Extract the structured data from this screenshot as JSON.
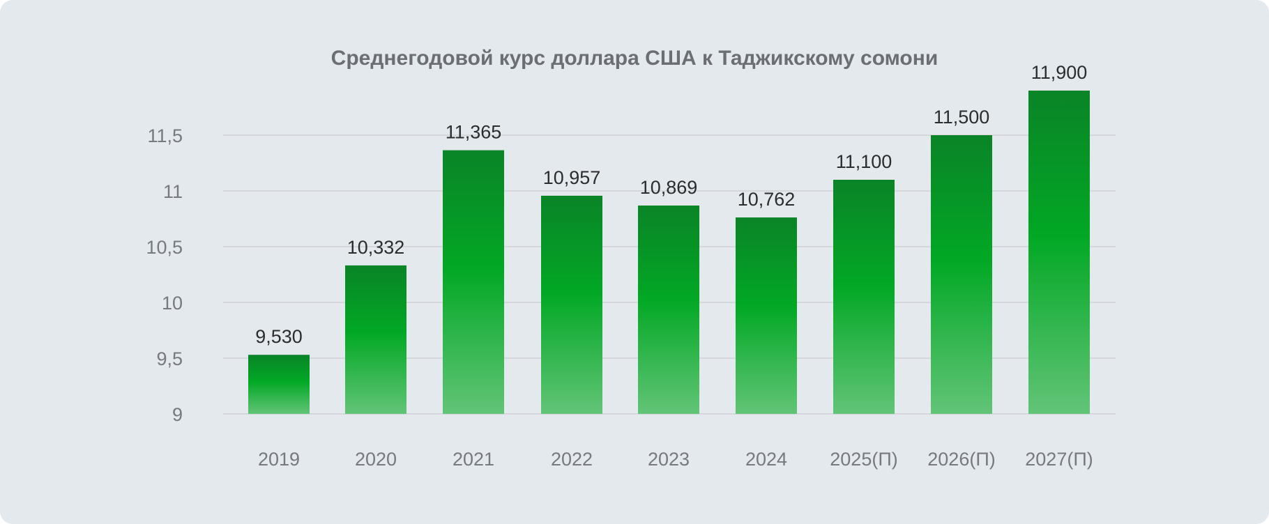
{
  "chart_data": {
    "type": "bar",
    "title": "Среднегодовой курс доллара США к Таджикскому сомони",
    "xlabel": "",
    "ylabel": "",
    "categories": [
      "2019",
      "2020",
      "2021",
      "2022",
      "2023",
      "2024",
      "2025(П)",
      "2026(П)",
      "2027(П)"
    ],
    "values": [
      9.53,
      10.332,
      11.365,
      10.957,
      10.869,
      10.762,
      11.1,
      11.5,
      11.9
    ],
    "value_labels": [
      "9,530",
      "10,332",
      "11,365",
      "10,957",
      "10,869",
      "10,762",
      "11,100",
      "11,500",
      "11,900"
    ],
    "y_ticks": [
      9,
      9.5,
      10,
      10.5,
      11,
      11.5
    ],
    "y_tick_labels": [
      "9",
      "9,5",
      "10",
      "10,5",
      "11",
      "11,5"
    ],
    "ylim": [
      9,
      11.95
    ],
    "grid": true,
    "legend": "none",
    "colors": {
      "background": "#e4e9ed",
      "bar_top": "#0a8427",
      "bar_mid": "#02a825",
      "bar_bottom": "#62c477",
      "grid": "#c9ced3",
      "title": "#6b6f73",
      "axis_text": "#767a7e",
      "value_text": "#2a2c2e"
    }
  }
}
